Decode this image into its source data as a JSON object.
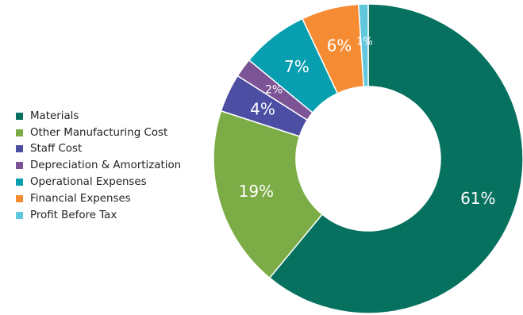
{
  "chart_data": {
    "type": "donut",
    "slices": [
      {
        "name": "Materials",
        "value": 61,
        "label": "61%",
        "color": "#077160"
      },
      {
        "name": "Other Manufacturing Cost",
        "value": 19,
        "label": "19%",
        "color": "#7cac46"
      },
      {
        "name": "Staff Cost",
        "value": 4,
        "label": "4%",
        "color": "#4b4ea3"
      },
      {
        "name": "Depreciation & Amortization",
        "value": 2,
        "label": "2%",
        "color": "#7c5495"
      },
      {
        "name": "Operational Expenses",
        "value": 7,
        "label": "7%",
        "color": "#079fb0"
      },
      {
        "name": "Financial Expenses",
        "value": 6,
        "label": "6%",
        "color": "#f58b33"
      },
      {
        "name": "Profit Before Tax",
        "value": 1,
        "label": "1%",
        "color": "#62c6dc"
      }
    ],
    "legend_position": "left"
  }
}
